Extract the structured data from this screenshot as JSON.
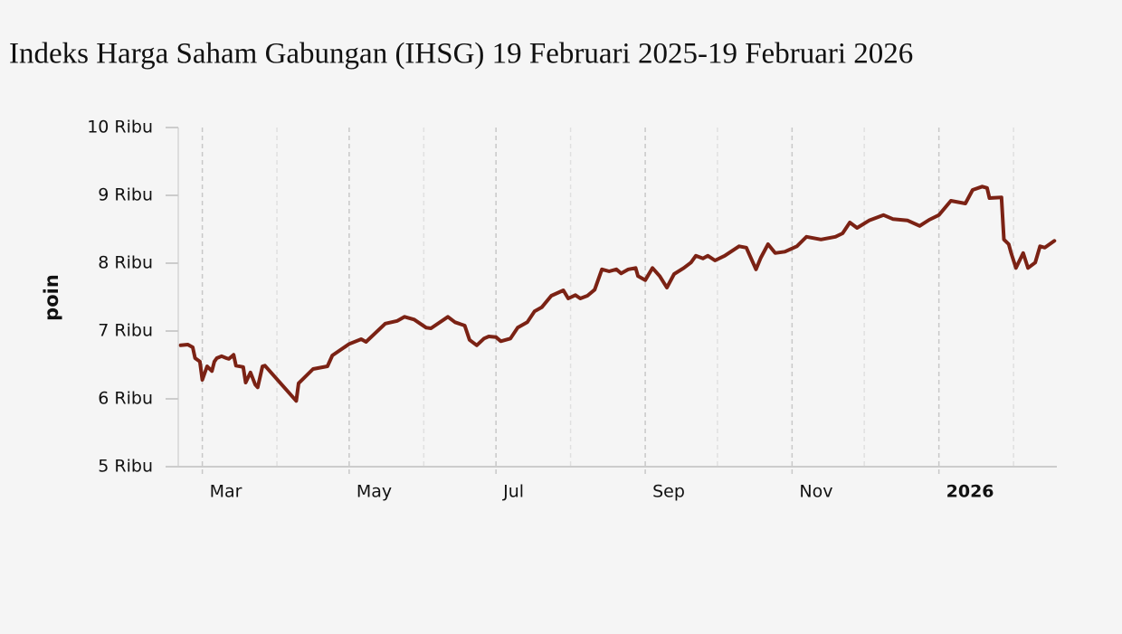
{
  "chart_data": {
    "type": "line",
    "title": "Indeks Harga Saham Gabungan (IHSG) 19 Februari 2025-19 Februari 2026",
    "y_label": "poin",
    "xlim": [
      "2025-02-19",
      "2026-02-19"
    ],
    "ylim": [
      5000,
      10000
    ],
    "yticks": [
      {
        "value": 5000,
        "label": "5 Ribu"
      },
      {
        "value": 6000,
        "label": "6 Ribu"
      },
      {
        "value": 7000,
        "label": "7 Ribu"
      },
      {
        "value": 8000,
        "label": "8 Ribu"
      },
      {
        "value": 9000,
        "label": "9 Ribu"
      },
      {
        "value": 10000,
        "label": "10 Ribu"
      }
    ],
    "xticks": [
      {
        "value": "2025-03-01",
        "label": "Mar"
      },
      {
        "value": "2025-05-01",
        "label": "May"
      },
      {
        "value": "2025-07-01",
        "label": "Jul"
      },
      {
        "value": "2025-09-01",
        "label": "Sep"
      },
      {
        "value": "2025-11-01",
        "label": "Nov"
      },
      {
        "value": "2026-01-01",
        "label": "2026"
      }
    ],
    "minor_xticks": [
      "2025-04-01",
      "2025-06-01",
      "2025-08-01",
      "2025-10-01",
      "2025-12-01",
      "2026-02-01"
    ],
    "x": [
      "2025-02-20",
      "2025-02-23",
      "2025-02-25",
      "2025-02-26",
      "2025-02-28",
      "2025-03-01",
      "2025-03-03",
      "2025-03-05",
      "2025-03-06",
      "2025-03-07",
      "2025-03-09",
      "2025-03-11",
      "2025-03-12",
      "2025-03-14",
      "2025-03-15",
      "2025-03-18",
      "2025-03-19",
      "2025-03-21",
      "2025-03-23",
      "2025-03-24",
      "2025-03-26",
      "2025-03-27",
      "2025-04-09",
      "2025-04-10",
      "2025-04-16",
      "2025-04-22",
      "2025-04-24",
      "2025-05-01",
      "2025-05-06",
      "2025-05-08",
      "2025-05-16",
      "2025-05-21",
      "2025-05-24",
      "2025-05-28",
      "2025-06-02",
      "2025-06-04",
      "2025-06-11",
      "2025-06-14",
      "2025-06-18",
      "2025-06-20",
      "2025-06-23",
      "2025-06-26",
      "2025-06-28",
      "2025-07-01",
      "2025-07-03",
      "2025-07-07",
      "2025-07-10",
      "2025-07-14",
      "2025-07-17",
      "2025-07-20",
      "2025-07-24",
      "2025-07-29",
      "2025-07-31",
      "2025-08-03",
      "2025-08-05",
      "2025-08-08",
      "2025-08-11",
      "2025-08-14",
      "2025-08-17",
      "2025-08-20",
      "2025-08-22",
      "2025-08-25",
      "2025-08-28",
      "2025-08-29",
      "2025-09-01",
      "2025-09-04",
      "2025-09-07",
      "2025-09-10",
      "2025-09-13",
      "2025-09-17",
      "2025-09-20",
      "2025-09-22",
      "2025-09-25",
      "2025-09-27",
      "2025-09-30",
      "2025-10-04",
      "2025-10-10",
      "2025-10-13",
      "2025-10-16",
      "2025-10-17",
      "2025-10-19",
      "2025-10-22",
      "2025-10-25",
      "2025-10-29",
      "2025-11-03",
      "2025-11-07",
      "2025-11-13",
      "2025-11-19",
      "2025-11-22",
      "2025-11-25",
      "2025-11-28",
      "2025-12-03",
      "2025-12-09",
      "2025-12-13",
      "2025-12-19",
      "2025-12-24",
      "2025-12-28",
      "2026-01-01",
      "2026-01-06",
      "2026-01-12",
      "2026-01-15",
      "2026-01-19",
      "2026-01-21",
      "2026-01-22",
      "2026-01-27",
      "2026-01-28",
      "2026-01-30",
      "2026-01-31",
      "2026-02-02",
      "2026-02-05",
      "2026-02-07",
      "2026-02-10",
      "2026-02-12",
      "2026-02-14",
      "2026-02-18"
    ],
    "series": [
      {
        "color": "#7b2214",
        "values": [
          6790,
          6800,
          6760,
          6600,
          6550,
          6280,
          6480,
          6410,
          6550,
          6600,
          6630,
          6600,
          6590,
          6650,
          6490,
          6470,
          6240,
          6390,
          6210,
          6170,
          6480,
          6490,
          5970,
          6230,
          6440,
          6480,
          6640,
          6810,
          6880,
          6840,
          7110,
          7150,
          7210,
          7170,
          7050,
          7040,
          7210,
          7130,
          7080,
          6870,
          6790,
          6890,
          6920,
          6910,
          6850,
          6890,
          7050,
          7130,
          7290,
          7350,
          7520,
          7600,
          7480,
          7530,
          7480,
          7520,
          7610,
          7910,
          7880,
          7910,
          7850,
          7910,
          7930,
          7810,
          7750,
          7930,
          7810,
          7640,
          7840,
          7930,
          8010,
          8110,
          8070,
          8110,
          8040,
          8110,
          8250,
          8230,
          7990,
          7910,
          8080,
          8280,
          8150,
          8170,
          8250,
          8390,
          8350,
          8390,
          8440,
          8600,
          8520,
          8630,
          8710,
          8650,
          8630,
          8550,
          8640,
          8710,
          8920,
          8880,
          9080,
          9130,
          9110,
          8960,
          8970,
          8350,
          8280,
          8150,
          7930,
          8150,
          7930,
          8010,
          8250,
          8230,
          8330
        ]
      }
    ]
  }
}
